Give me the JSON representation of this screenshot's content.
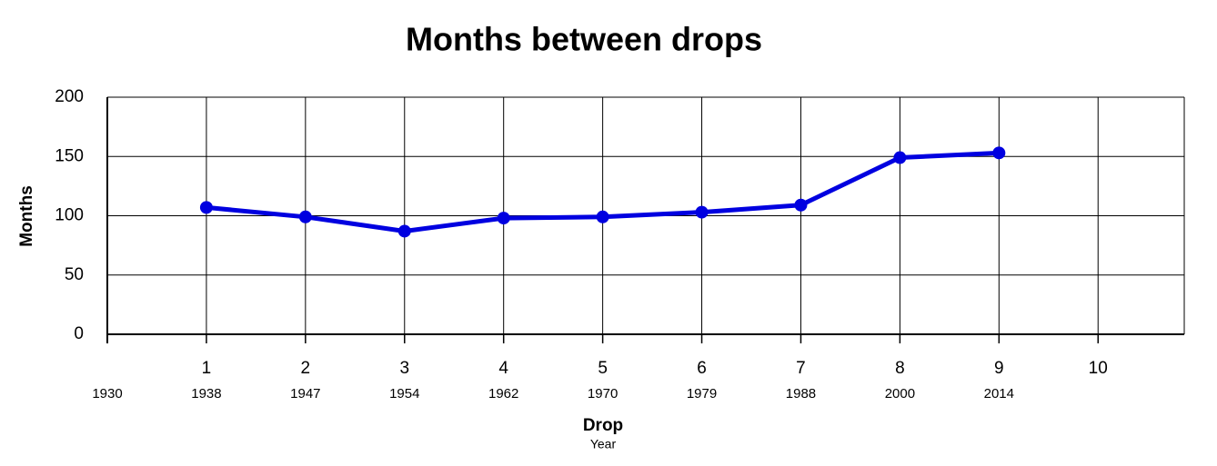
{
  "chart_data": {
    "type": "line",
    "title": "Months between drops",
    "x_label": "Drop",
    "x_sublabel": "Year",
    "y_label": "Months",
    "x": [
      1,
      2,
      3,
      4,
      5,
      6,
      7,
      8,
      9
    ],
    "series": [
      {
        "name": "Months",
        "color": "#0000e0",
        "values": [
          107,
          99,
          87,
          98,
          99,
          103,
          109,
          149,
          153
        ]
      }
    ],
    "xlim": [
      0,
      10.87
    ],
    "xticks": [
      1,
      2,
      3,
      4,
      5,
      6,
      7,
      8,
      9,
      10
    ],
    "year_ticks": [
      {
        "value": 0,
        "label": "1930"
      },
      {
        "value": 1,
        "label": "1938"
      },
      {
        "value": 2,
        "label": "1947"
      },
      {
        "value": 3,
        "label": "1954"
      },
      {
        "value": 4,
        "label": "1962"
      },
      {
        "value": 5,
        "label": "1970"
      },
      {
        "value": 6,
        "label": "1979"
      },
      {
        "value": 7,
        "label": "1988"
      },
      {
        "value": 8,
        "label": "2000"
      },
      {
        "value": 9,
        "label": "2014"
      }
    ],
    "ylim": [
      0,
      200
    ],
    "yticks": [
      0,
      50,
      100,
      150,
      200
    ],
    "grid": true
  }
}
